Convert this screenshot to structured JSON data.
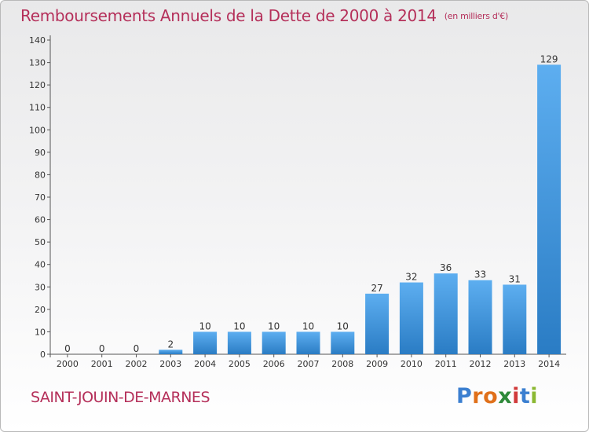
{
  "header": {
    "title": "Remboursements Annuels de la Dette de 2000 à 2014",
    "unit": "(en milliers d'€)"
  },
  "footer": {
    "place": "SAINT-JOUIN-DE-MARNES",
    "logo_letters": [
      {
        "ch": "P",
        "color": "#3b7fd0"
      },
      {
        "ch": "r",
        "color": "#e0701a"
      },
      {
        "ch": "o",
        "color": "#e0701a"
      },
      {
        "ch": "x",
        "color": "#2f8a3a"
      },
      {
        "ch": "i",
        "color": "#d13a3a"
      },
      {
        "ch": "t",
        "color": "#3b7fd0"
      },
      {
        "ch": "i",
        "color": "#8bb832"
      }
    ]
  },
  "colors": {
    "text": "#b5305a",
    "bar_light": "#5daef0",
    "bar_dark": "#2a7cc4"
  },
  "chart_data": {
    "type": "bar",
    "categories": [
      "2000",
      "2001",
      "2002",
      "2003",
      "2004",
      "2005",
      "2006",
      "2007",
      "2008",
      "2009",
      "2010",
      "2011",
      "2012",
      "2013",
      "2014"
    ],
    "values": [
      0,
      0,
      0,
      2,
      10,
      10,
      10,
      10,
      10,
      27,
      32,
      36,
      33,
      31,
      129
    ],
    "ylim": [
      0,
      140
    ],
    "yticks": [
      0,
      10,
      20,
      30,
      40,
      50,
      60,
      70,
      80,
      90,
      100,
      110,
      120,
      130,
      140
    ],
    "grid": false,
    "legend": "none"
  }
}
